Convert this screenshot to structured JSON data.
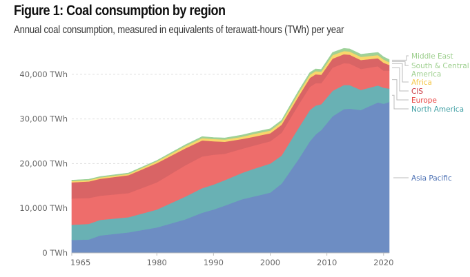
{
  "title": "Figure 1: Coal consumption by region",
  "subtitle": "Annual coal consumption, measured in equivalents of terawatt-hours (TWh) per year",
  "chart_data": {
    "type": "area",
    "stacked": true,
    "title": "Figure 1: Coal consumption by region",
    "subtitle": "Annual coal consumption, measured in equivalents of terawatt-hours (TWh) per year",
    "xlabel": "",
    "ylabel": "",
    "x": [
      1965,
      1968,
      1970,
      1975,
      1980,
      1985,
      1988,
      1990,
      1992,
      1995,
      1997,
      2000,
      2002,
      2005,
      2007,
      2008,
      2009,
      2011,
      2013,
      2014,
      2016,
      2019,
      2020,
      2021
    ],
    "xlim": [
      1965,
      2021
    ],
    "ylim": [
      0,
      45000
    ],
    "xticks": [
      "1965",
      "1980",
      "1990",
      "2000",
      "2010",
      "2020"
    ],
    "yticks": [
      {
        "value": 0,
        "label": "0 TWh"
      },
      {
        "value": 10000,
        "label": "10,000 TWh"
      },
      {
        "value": 20000,
        "label": "20,000 TWh"
      },
      {
        "value": 30000,
        "label": "30,000 TWh"
      },
      {
        "value": 40000,
        "label": "40,000 TWh"
      }
    ],
    "grid": true,
    "legend_position": "right (inline labels)",
    "series": [
      {
        "name": "Asia Pacific",
        "color": "#6d8dc3",
        "values": [
          2900,
          3000,
          3900,
          4600,
          5700,
          7500,
          9000,
          9700,
          10600,
          12000,
          12600,
          13500,
          15500,
          21000,
          25000,
          26500,
          27500,
          30600,
          32200,
          32300,
          32000,
          33700,
          33400,
          33800
        ]
      },
      {
        "name": "North America",
        "color": "#69b1b4",
        "values": [
          3400,
          3500,
          3500,
          3400,
          4000,
          5100,
          5500,
          5600,
          5700,
          5900,
          6200,
          6500,
          6300,
          7000,
          7000,
          6500,
          5800,
          5700,
          5400,
          5300,
          4500,
          3800,
          3600,
          3000
        ]
      },
      {
        "name": "Europe",
        "color": "#ee6d6b",
        "values": [
          5900,
          5800,
          5400,
          5400,
          6100,
          7000,
          7100,
          6700,
          5900,
          5400,
          5200,
          5000,
          5100,
          5200,
          5200,
          5000,
          4700,
          5200,
          4900,
          4800,
          4700,
          4300,
          3800,
          4000
        ]
      },
      {
        "name": "CIS",
        "color": "#d96465",
        "values": [
          3600,
          3700,
          3800,
          4000,
          4300,
          3800,
          3600,
          3000,
          2700,
          2200,
          2000,
          1800,
          1800,
          1900,
          2000,
          2000,
          1900,
          2000,
          2000,
          2000,
          2000,
          1800,
          1800,
          1300
        ]
      },
      {
        "name": "Africa",
        "color": "#f9d76b",
        "values": [
          300,
          300,
          300,
          300,
          400,
          500,
          500,
          500,
          500,
          500,
          600,
          600,
          600,
          700,
          700,
          700,
          700,
          800,
          700,
          700,
          700,
          700,
          700,
          600
        ]
      },
      {
        "name": "South & Central America",
        "color": "#a6d08f",
        "values": [
          150,
          150,
          150,
          150,
          150,
          200,
          250,
          250,
          250,
          300,
          300,
          300,
          300,
          300,
          300,
          300,
          300,
          350,
          350,
          350,
          350,
          300,
          300,
          300
        ]
      },
      {
        "name": "Middle East",
        "color": "#9dd29a",
        "values": [
          50,
          50,
          50,
          50,
          50,
          100,
          100,
          100,
          100,
          100,
          100,
          100,
          100,
          200,
          200,
          200,
          200,
          250,
          250,
          250,
          250,
          300,
          300,
          300
        ]
      }
    ],
    "labels": [
      {
        "text": "Middle East",
        "color": "#9dcf8e"
      },
      {
        "text": "South & Central",
        "color": "#9dcf8e"
      },
      {
        "text": "America",
        "color": "#9dcf8e"
      },
      {
        "text": "Africa",
        "color": "#f4c542"
      },
      {
        "text": "CIS",
        "color": "#c9303a"
      },
      {
        "text": "Europe",
        "color": "#e8413f"
      },
      {
        "text": "North America",
        "color": "#3d9ea3"
      },
      {
        "text": "Asia Pacific",
        "color": "#4a6fb3"
      }
    ]
  }
}
